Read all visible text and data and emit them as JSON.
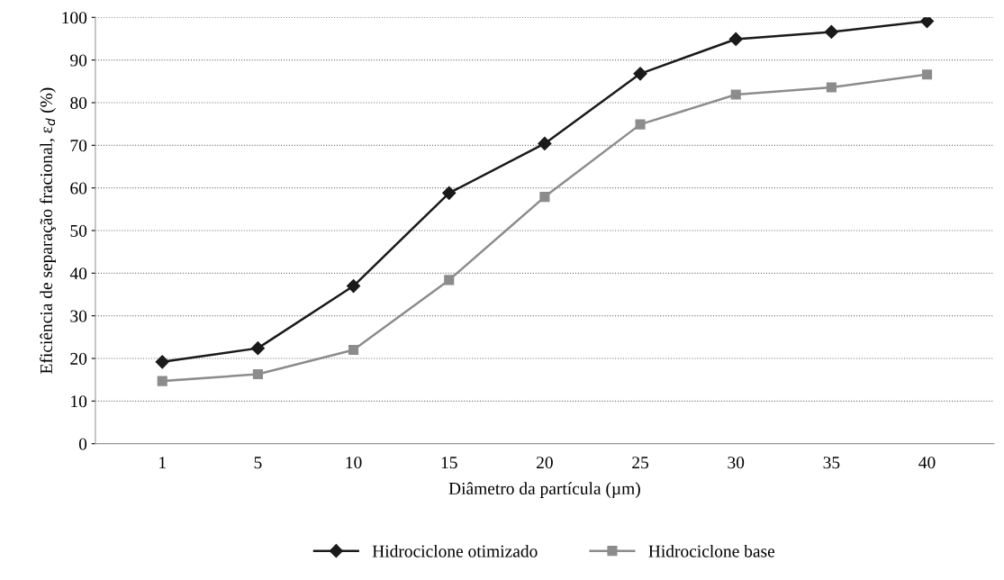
{
  "chart_data": {
    "type": "line",
    "xlabel": "Diâmetro da partícula (µm)",
    "ylabel": "Eficiência de separação fracional, ε$_{d}$ (%)",
    "categories": [
      "1",
      "5",
      "10",
      "15",
      "20",
      "25",
      "30",
      "35",
      "40"
    ],
    "series": [
      {
        "name": "Hidrociclone otimizado",
        "color": "#1a1a1a",
        "marker": "diamond",
        "values": [
          19.2,
          22.4,
          37,
          58.8,
          70.4,
          86.8,
          94.9,
          96.6,
          99.1
        ]
      },
      {
        "name": "Hidrociclone base",
        "color": "#8c8c8c",
        "marker": "square",
        "values": [
          14.7,
          16.3,
          22,
          38.4,
          57.9,
          74.9,
          81.9,
          83.6,
          86.6
        ]
      }
    ],
    "ylim": [
      0,
      100
    ],
    "yticks": [
      0,
      10,
      20,
      30,
      40,
      50,
      60,
      70,
      80,
      90,
      100
    ],
    "grid": "y",
    "legend": "bottom",
    "line_style": "solid"
  }
}
